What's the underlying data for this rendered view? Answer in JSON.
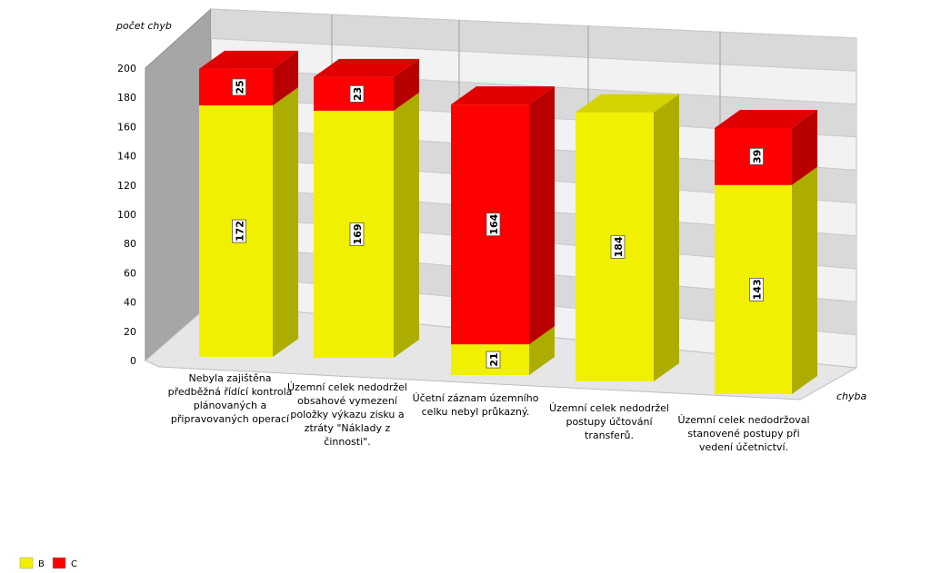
{
  "chart_data": {
    "type": "bar",
    "stacked": true,
    "three_d": true,
    "ylabel": "počet chyb",
    "xlabel": "chyba",
    "ylim": [
      0,
      200
    ],
    "yticks": [
      "0",
      "20",
      "40",
      "60",
      "80",
      "100",
      "120",
      "140",
      "160",
      "180",
      "200"
    ],
    "categories": [
      [
        "Nebyla zajištěna",
        "předběžná řídící kontrola",
        "plánovaných a",
        "připravovaných operací"
      ],
      [
        "Územní celek nedodržel",
        "obsahové vymezení",
        "položky výkazu zisku a",
        "ztráty \"Náklady z",
        "činnosti\"."
      ],
      [
        "Účetní záznam  územního",
        "celku nebyl průkazný."
      ],
      [
        "Územní celek nedodržel",
        "postupy účtování",
        "transferů."
      ],
      [
        "Územní celek nedodržoval",
        "stanovené postupy při",
        "vedení účetnictví."
      ]
    ],
    "series": [
      {
        "name": "B",
        "color": "#f0f000",
        "values": [
          172,
          169,
          21,
          184,
          143
        ],
        "labels": [
          "172",
          "169",
          "21",
          "184",
          "143"
        ]
      },
      {
        "name": "C",
        "color": "#ff0000",
        "values": [
          25,
          23,
          164,
          0,
          39
        ],
        "labels": [
          "25",
          "23",
          "164",
          "",
          "39"
        ]
      }
    ],
    "legend_position": "bottom-left",
    "grid": true
  }
}
